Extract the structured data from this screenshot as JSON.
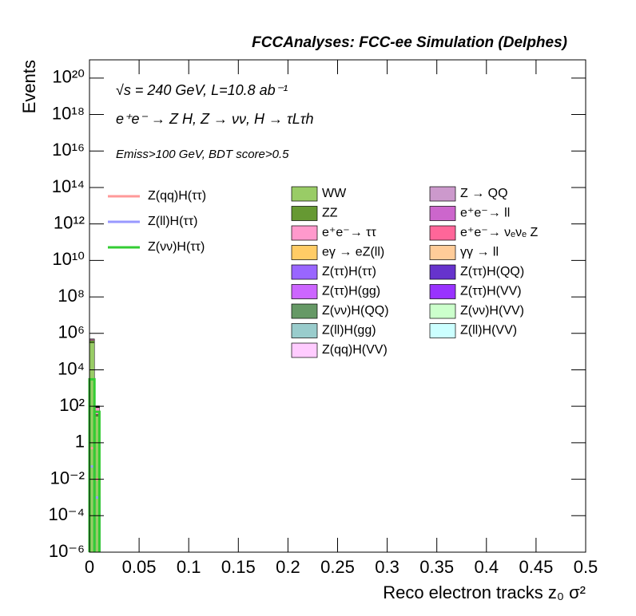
{
  "chart_data": {
    "type": "stacked_histogram",
    "title": "FCCAnalyses: FCC-ee Simulation (Delphes)",
    "annotations": [
      "√s = 240 GeV, L=10.8 ab⁻¹",
      "e⁺e⁻ → Z H, Z → νν, H → τLτh",
      "Emiss>100 GeV, BDT score>0.5"
    ],
    "x_label": "Reco electron tracks z₀ σ²",
    "y_label": "Events",
    "log_y": true,
    "bins": [
      0,
      0.005,
      0.01
    ],
    "xlim": [
      0,
      0.5
    ],
    "ylim": [
      1e-06,
      1e+21
    ],
    "xticks": [
      0,
      0.05,
      0.1,
      0.15,
      0.2,
      0.25,
      0.3,
      0.35,
      0.4,
      0.45,
      0.5
    ],
    "yticks": [
      {
        "value": 1e-06,
        "label": "10⁻⁶"
      },
      {
        "value": 0.0001,
        "label": "10⁻⁴"
      },
      {
        "value": 0.01,
        "label": "10⁻²"
      },
      1,
      {
        "value": 100,
        "label": "10²"
      },
      {
        "value": 10000,
        "label": "10⁴"
      },
      {
        "value": 1000000.0,
        "label": "10⁶"
      },
      {
        "value": 100000000.0,
        "label": "10⁸"
      },
      {
        "value": 10000000000.0,
        "label": "10¹⁰"
      },
      {
        "value": 1000000000000.0,
        "label": "10¹²"
      },
      {
        "value": 100000000000000.0,
        "label": "10¹⁴"
      },
      {
        "value": 1e+16,
        "label": "10¹⁶"
      },
      {
        "value": 1e+18,
        "label": "10¹⁸"
      },
      {
        "value": 1e+20,
        "label": "10²⁰"
      }
    ],
    "series": [
      {
        "name": "WW",
        "color": "#99cc66",
        "values": [
          300000,
          30
        ]
      },
      {
        "name": "ZZ",
        "color": "#669933",
        "values": [
          100000,
          5
        ]
      },
      {
        "name": "e⁺e⁻→ ττ",
        "color": "#ff99cc",
        "values": [
          80000,
          50
        ]
      },
      {
        "name": "eγ → eZ(ll)",
        "color": "#ffcc66",
        "values": [
          100,
          1
        ]
      },
      {
        "name": "Z(ττ)H(ττ)",
        "color": "#9966ff",
        "values": [
          5,
          0.05
        ]
      },
      {
        "name": "Z(ττ)H(gg)",
        "color": "#cc66ff",
        "values": [
          0.5,
          0.01
        ]
      },
      {
        "name": "Z(νν)H(QQ)",
        "color": "#669966",
        "values": [
          20,
          0.5
        ]
      },
      {
        "name": "Z(ll)H(gg)",
        "color": "#99cccc",
        "values": [
          0.1,
          0.001
        ]
      },
      {
        "name": "Z(qq)H(VV)",
        "color": "#ffccff",
        "values": [
          0.2,
          0.01
        ]
      },
      {
        "name": "Z → QQ",
        "color": "#cc99cc",
        "values": [
          50,
          1
        ]
      },
      {
        "name": "e⁺e⁻→ ll",
        "color": "#cc66cc",
        "values": [
          1000,
          5
        ]
      },
      {
        "name": "e⁺e⁻→ νₑνₑ Z",
        "color": "#ff6699",
        "values": [
          500,
          2
        ]
      },
      {
        "name": "γγ → ll",
        "color": "#ffcc99",
        "values": [
          2000,
          10
        ]
      },
      {
        "name": "Z(ττ)H(QQ)",
        "color": "#6633cc",
        "values": [
          0.3,
          0.01
        ]
      },
      {
        "name": "Z(ττ)H(VV)",
        "color": "#9933ff",
        "values": [
          0.2,
          0.01
        ]
      },
      {
        "name": "Z(νν)H(VV)",
        "color": "#ccffcc",
        "values": [
          5,
          0.2
        ]
      },
      {
        "name": "Z(ll)H(VV)",
        "color": "#ccffff",
        "values": [
          0.05,
          0.001
        ]
      }
    ],
    "signals": [
      {
        "name": "Z(qq)H(ττ)",
        "color": "#ff9999",
        "values": [
          0.5,
          0.01
        ]
      },
      {
        "name": "Z(ll)H(ττ)",
        "color": "#9999ff",
        "values": [
          0.05,
          0.001
        ]
      },
      {
        "name": "Z(νν)H(ττ)",
        "color": "#33cc33",
        "values": [
          3000,
          50
        ]
      }
    ]
  }
}
